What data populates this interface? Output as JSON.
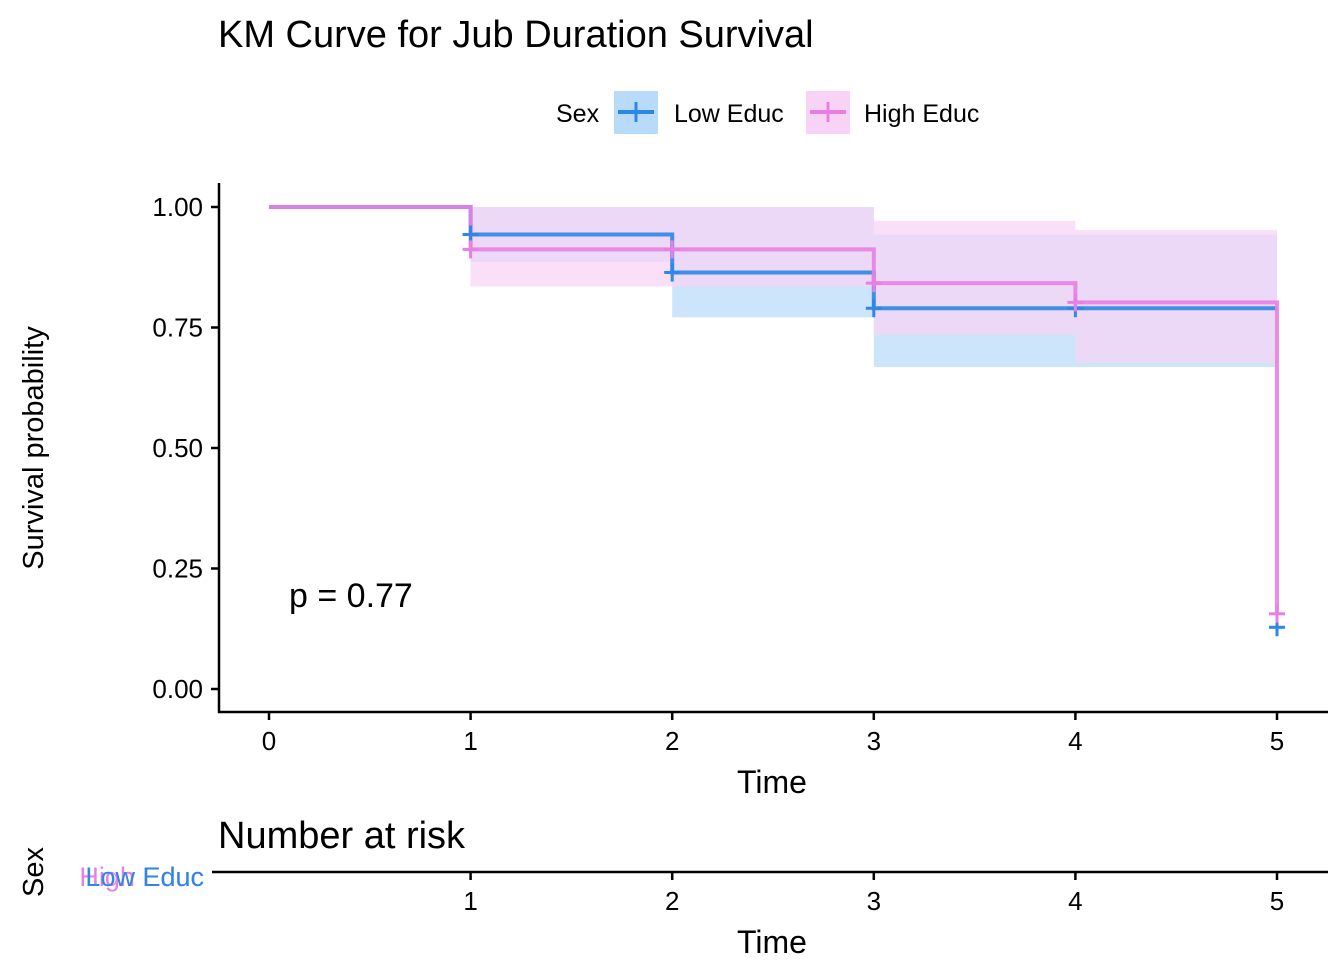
{
  "title": "KM Curve for Jub Duration Survival",
  "legend": {
    "title": "Sex",
    "items": [
      {
        "label": "Low Educ",
        "color": "#2e86e6",
        "fill": "#b9dbfa"
      },
      {
        "label": "High Educ",
        "color": "#ea7fe3",
        "fill": "#f8d3f5"
      }
    ]
  },
  "p_value_text": "p = 0.77",
  "risk_table": {
    "title": "Number at risk",
    "ylabel": "Sex",
    "strata_labels": [
      {
        "label": "High Educ",
        "color": "#ea7fe3"
      },
      {
        "label": "Low Educ",
        "color": "#2e86e6"
      }
    ],
    "xlabel": "Time",
    "x_ticks": [
      "1",
      "2",
      "3",
      "4",
      "5"
    ]
  },
  "chart_data": {
    "type": "line",
    "subtype": "step",
    "title": "KM Curve for Jub Duration Survival",
    "xlabel": "Time",
    "ylabel": "Survival probability",
    "xlim": [
      0,
      5
    ],
    "ylim": [
      0,
      1
    ],
    "x_ticks": [
      0,
      1,
      2,
      3,
      4,
      5
    ],
    "y_ticks": [
      "0.00",
      "0.25",
      "0.50",
      "0.75",
      "1.00"
    ],
    "grid": false,
    "legend_position": "top",
    "series": [
      {
        "name": "Low Educ",
        "color": "#2e86e6",
        "fill": "#b9dbfa",
        "steps": [
          {
            "x": 0,
            "y": 1.0
          },
          {
            "x": 1,
            "y": 0.943
          },
          {
            "x": 2,
            "y": 0.864
          },
          {
            "x": 3,
            "y": 0.79
          },
          {
            "x": 5,
            "y": 0.79
          }
        ],
        "ci": [
          {
            "x0": 1,
            "x1": 2,
            "lo": 0.886,
            "hi": 1.0
          },
          {
            "x0": 2,
            "x1": 3,
            "lo": 0.771,
            "hi": 1.0
          },
          {
            "x0": 3,
            "x1": 4,
            "lo": 0.668,
            "hi": 0.943
          },
          {
            "x0": 4,
            "x1": 5,
            "lo": 0.668,
            "hi": 0.943
          }
        ],
        "censor": [
          {
            "x": 1,
            "y": 0.943
          },
          {
            "x": 2,
            "y": 0.864
          },
          {
            "x": 3,
            "y": 0.79
          },
          {
            "x": 4,
            "y": 0.79
          },
          {
            "x": 5,
            "y": 0.128
          }
        ]
      },
      {
        "name": "High Educ",
        "color": "#ea7fe3",
        "fill": "#f8d3f5",
        "steps": [
          {
            "x": 0,
            "y": 1.0
          },
          {
            "x": 1,
            "y": 0.912
          },
          {
            "x": 3,
            "y": 0.842
          },
          {
            "x": 4,
            "y": 0.802
          },
          {
            "x": 5,
            "y": 0.802
          },
          {
            "x": 5,
            "y": 0.156
          }
        ],
        "ci": [
          {
            "x0": 1,
            "x1": 2,
            "lo": 0.835,
            "hi": 1.0
          },
          {
            "x0": 2,
            "x1": 3,
            "lo": 0.835,
            "hi": 1.0
          },
          {
            "x0": 3,
            "x1": 4,
            "lo": 0.735,
            "hi": 0.971
          },
          {
            "x0": 4,
            "x1": 5,
            "lo": 0.677,
            "hi": 0.952
          }
        ],
        "censor": [
          {
            "x": 1,
            "y": 0.912
          },
          {
            "x": 2,
            "y": 0.912
          },
          {
            "x": 3,
            "y": 0.842
          },
          {
            "x": 4,
            "y": 0.802
          },
          {
            "x": 5,
            "y": 0.156
          }
        ]
      }
    ]
  }
}
